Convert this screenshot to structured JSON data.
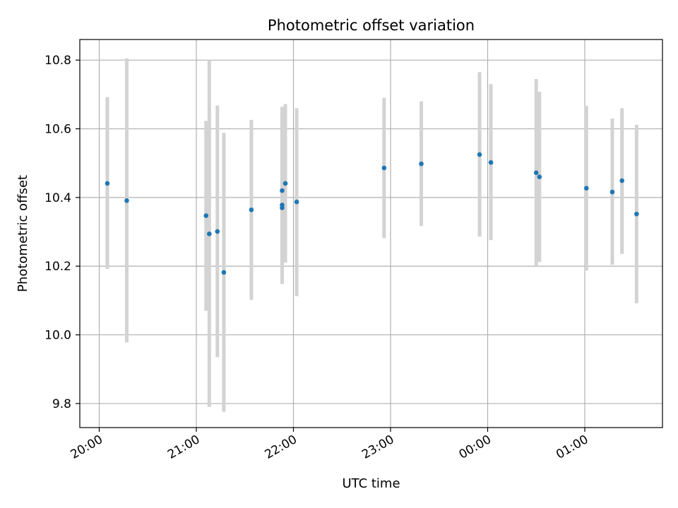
{
  "chart_data": {
    "type": "scatter",
    "title": "Photometric offset variation",
    "xlabel": "UTC time",
    "ylabel": "Photometric offset",
    "x_ticks": [
      {
        "label": "20:00",
        "value": 0
      },
      {
        "label": "21:00",
        "value": 60
      },
      {
        "label": "22:00",
        "value": 120
      },
      {
        "label": "23:00",
        "value": 180
      },
      {
        "label": "00:00",
        "value": 240
      },
      {
        "label": "01:00",
        "value": 300
      }
    ],
    "y_ticks": [
      9.8,
      10.0,
      10.2,
      10.4,
      10.6,
      10.8
    ],
    "xlim": [
      -12,
      348
    ],
    "ylim": [
      9.73,
      10.86
    ],
    "grid": true,
    "colors": {
      "point": "#1f77b4",
      "errorbar": "#d3d3d3",
      "grid": "#b0b0b0"
    },
    "series": [
      {
        "points": [
          {
            "x": "20:05",
            "y": 10.441,
            "err_low": 10.192,
            "err_high": 10.692
          },
          {
            "x": "20:17",
            "y": 10.391,
            "err_low": 9.978,
            "err_high": 10.805
          },
          {
            "x": "21:06",
            "y": 10.347,
            "err_low": 10.07,
            "err_high": 10.623
          },
          {
            "x": "21:08",
            "y": 10.294,
            "err_low": 9.79,
            "err_high": 10.8
          },
          {
            "x": "21:13",
            "y": 10.301,
            "err_low": 9.935,
            "err_high": 10.668
          },
          {
            "x": "21:17",
            "y": 10.182,
            "err_low": 9.776,
            "err_high": 10.588
          },
          {
            "x": "21:34",
            "y": 10.364,
            "err_low": 10.102,
            "err_high": 10.626
          },
          {
            "x": "21:53",
            "y": 10.37,
            "err_low": 10.148,
            "err_high": 10.664
          },
          {
            "x": "21:53",
            "y": 10.378,
            "err_low": 10.18,
            "err_high": 10.6
          },
          {
            "x": "21:53",
            "y": 10.42,
            "err_low": 10.2,
            "err_high": 10.64
          },
          {
            "x": "21:55",
            "y": 10.441,
            "err_low": 10.21,
            "err_high": 10.672
          },
          {
            "x": "22:02",
            "y": 10.387,
            "err_low": 10.113,
            "err_high": 10.66
          },
          {
            "x": "22:56",
            "y": 10.486,
            "err_low": 10.282,
            "err_high": 10.69
          },
          {
            "x": "23:19",
            "y": 10.498,
            "err_low": 10.317,
            "err_high": 10.68
          },
          {
            "x": "23:55",
            "y": 10.525,
            "err_low": 10.286,
            "err_high": 10.765
          },
          {
            "x": "00:02",
            "y": 10.502,
            "err_low": 10.276,
            "err_high": 10.73
          },
          {
            "x": "00:30",
            "y": 10.472,
            "err_low": 10.2,
            "err_high": 10.745
          },
          {
            "x": "00:32",
            "y": 10.46,
            "err_low": 10.212,
            "err_high": 10.708
          },
          {
            "x": "01:01",
            "y": 10.427,
            "err_low": 10.187,
            "err_high": 10.667
          },
          {
            "x": "01:17",
            "y": 10.416,
            "err_low": 10.204,
            "err_high": 10.63
          },
          {
            "x": "01:23",
            "y": 10.449,
            "err_low": 10.236,
            "err_high": 10.66
          },
          {
            "x": "01:32",
            "y": 10.352,
            "err_low": 10.092,
            "err_high": 10.612
          }
        ]
      }
    ]
  }
}
